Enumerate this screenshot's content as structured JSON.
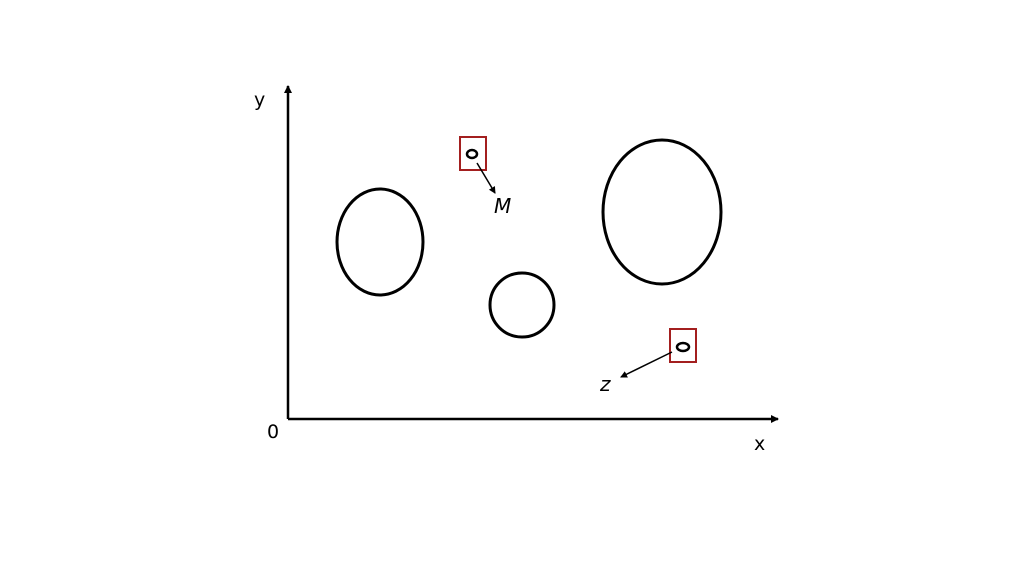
{
  "axes": {
    "x_label": "x",
    "y_label": "y",
    "origin_label": "0"
  },
  "points": {
    "m_label": "M",
    "z_label": "z"
  },
  "colors": {
    "stroke": "#000000",
    "highlight_box": "#a31f1f",
    "background": "#ffffff"
  }
}
